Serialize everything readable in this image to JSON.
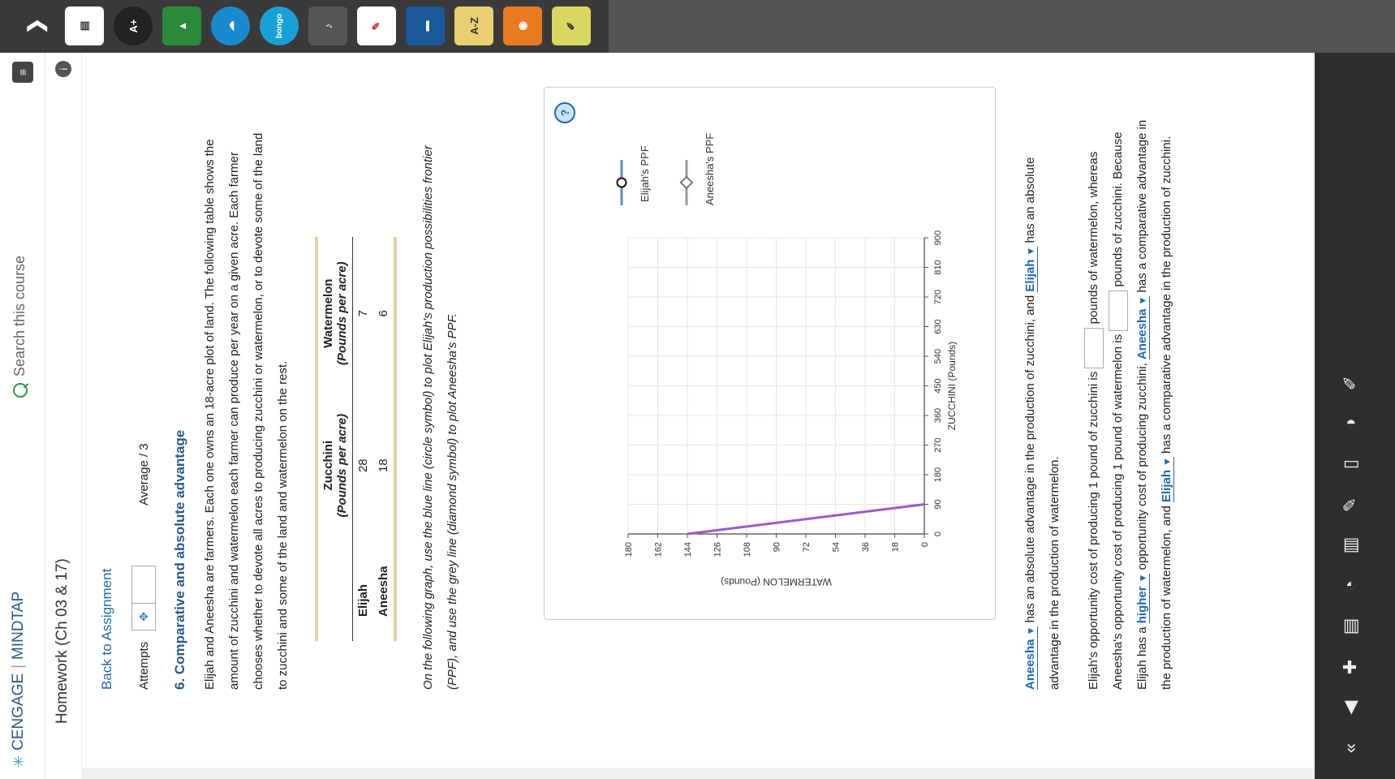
{
  "header": {
    "brand_cengage": "CENGAGE",
    "brand_mindtap": "MINDTAP",
    "search_placeholder": "Search this course"
  },
  "course": {
    "title": "Homework (Ch 03 & 17)"
  },
  "nav": {
    "back_label": "Back to Assignment"
  },
  "attempts": {
    "label": "Attempts",
    "average_label": "Average / 3"
  },
  "question": {
    "title": "6. Comparative and absolute advantage",
    "intro": "Elijah and Aneesha are farmers. Each one owns an 18-acre plot of land. The following table shows the amount of zucchini and watermelon each farmer can produce per year on a given acre. Each farmer chooses whether to devote all acres to producing zucchini or watermelon, or to devote some of the land to zucchini and some of the land and watermelon on the rest.",
    "instruction": "On the following graph, use the blue line (circle symbol) to plot Elijah's production possibilities frontier (PPF), and use the grey line (diamond symbol) to plot Aneesha's PPF."
  },
  "table": {
    "col1": "Zucchini",
    "col1_unit": "(Pounds per acre)",
    "col2": "Watermelon",
    "col2_unit": "(Pounds per acre)",
    "rows": [
      {
        "name": "Elijah",
        "zucchini": "28",
        "watermelon": "7"
      },
      {
        "name": "Aneesha",
        "zucchini": "18",
        "watermelon": "6"
      }
    ]
  },
  "chart_data": {
    "type": "line",
    "xlabel": "ZUCCHINI (Pounds)",
    "ylabel": "WATERMELON (Pounds)",
    "xlim": [
      0,
      900
    ],
    "ylim": [
      0,
      180
    ],
    "x_ticks": [
      "0",
      "90",
      "180",
      "270",
      "360",
      "450",
      "540",
      "630",
      "720",
      "810",
      "900"
    ],
    "y_ticks": [
      "0",
      "18",
      "36",
      "54",
      "72",
      "90",
      "108",
      "126",
      "144",
      "162",
      "180"
    ],
    "grid": true,
    "legend": [
      "Elijah's PPF",
      "Aneesha's PPF"
    ],
    "series": [
      {
        "points": [
          {
            "x": 0,
            "y": 144
          },
          {
            "x": 90,
            "y": 0
          }
        ],
        "color": "#9b59d0"
      }
    ]
  },
  "answers": {
    "s1_a": "Aneesha",
    "s1_b": "has an absolute advantage in the production of zucchini, and",
    "s1_c": "Elijah",
    "s1_d": "has an absolute advantage in the production of watermelon.",
    "s2_a": "Elijah's opportunity cost of producing 1 pound of zucchini is",
    "s2_b": "pounds of watermelon, whereas Aneesha's opportunity cost of producing 1 pound of watermelon is",
    "s2_c": "pounds of zucchini. Because Elijah has a",
    "s2_d": "higher",
    "s2_e": "opportunity cost of producing zucchini,",
    "s2_f": "Aneesha",
    "s2_g": "has a comparative advantage in the production of watermelon, and",
    "s2_h": "Elijah",
    "s2_i": "has a comparative advantage in the production of zucchini."
  },
  "icons": {
    "app_az": "A-Z",
    "app_bongo": "bongo"
  }
}
